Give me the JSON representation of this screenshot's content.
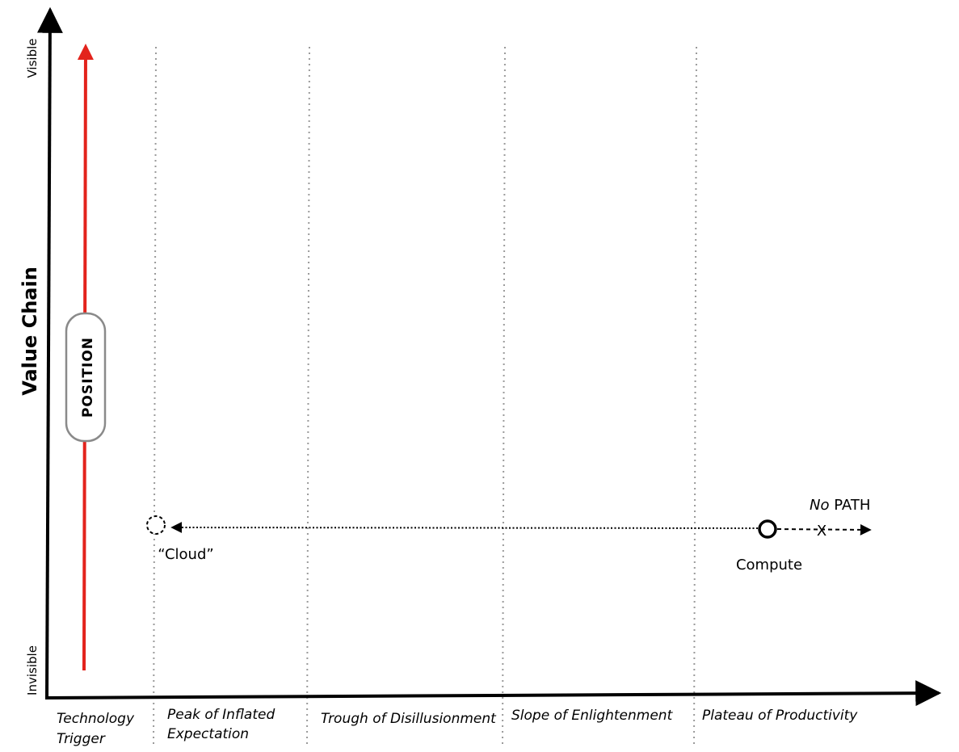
{
  "y_axis": {
    "title": "Value Chain",
    "top_label": "Visible",
    "bottom_label": "Invisible"
  },
  "phases": [
    {
      "line1": "Technology",
      "line2": "Trigger"
    },
    {
      "line1": "Peak of Inflated",
      "line2": "Expectation"
    },
    {
      "line1": "Trough of Disillusionment",
      "line2": ""
    },
    {
      "line1": "Slope of Enlightenment",
      "line2": ""
    },
    {
      "line1": "Plateau of Productivity",
      "line2": ""
    }
  ],
  "position_arrow": {
    "label": "POSITION",
    "color": "#e3231c"
  },
  "nodes": {
    "cloud": {
      "label": "“Cloud”"
    },
    "compute": {
      "label": "Compute"
    }
  },
  "no_path": {
    "prefix": "No",
    "suffix": " PATH",
    "marker": "X"
  },
  "colors": {
    "axis": "#000000",
    "phase_divider": "#9a9a9a",
    "pill_border": "#8a8a8a"
  }
}
